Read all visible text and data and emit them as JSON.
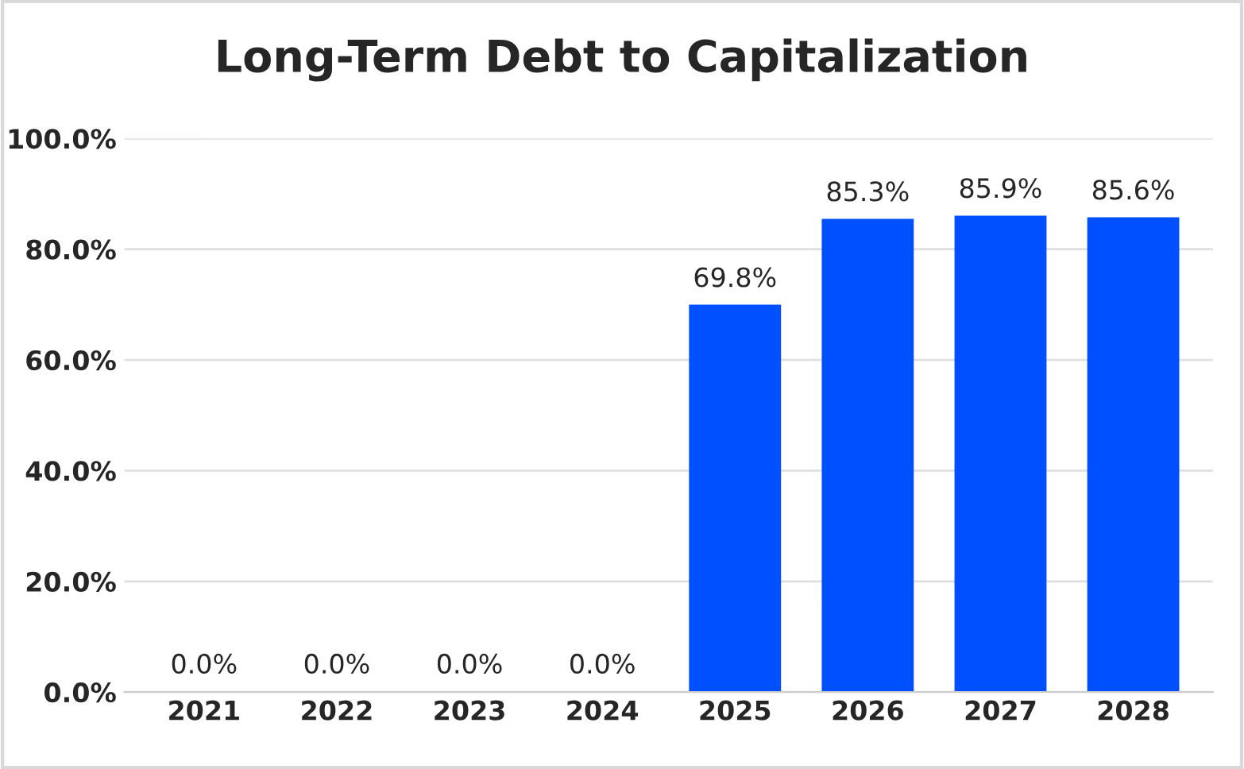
{
  "chart_data": {
    "type": "bar",
    "title": "Long-Term Debt to Capitalization",
    "categories": [
      "2021",
      "2022",
      "2023",
      "2024",
      "2025",
      "2026",
      "2027",
      "2028"
    ],
    "values": [
      0,
      0,
      0,
      0,
      69.8,
      85.3,
      85.9,
      85.6
    ],
    "value_labels": [
      "0.0%",
      "0.0%",
      "0.0%",
      "0.0%",
      "69.8%",
      "85.3%",
      "85.9%",
      "85.6%"
    ],
    "color": "#0050ff",
    "ylim": [
      0,
      100
    ],
    "yticks": [
      {
        "value": 0,
        "label": "0.0%"
      },
      {
        "value": 20,
        "label": "20.0%"
      },
      {
        "value": 40,
        "label": "40.0%"
      },
      {
        "value": 60,
        "label": "60.0%"
      },
      {
        "value": 80,
        "label": "80.0%"
      },
      {
        "value": 100,
        "label": "100.0%"
      }
    ],
    "grid": "y"
  }
}
